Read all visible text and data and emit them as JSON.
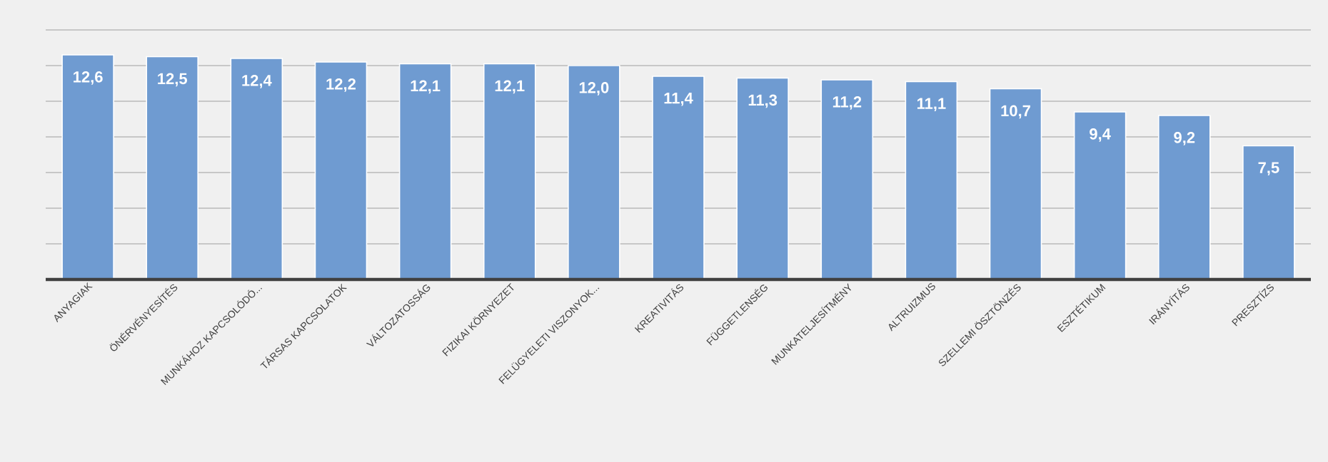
{
  "chart_data": {
    "type": "bar",
    "categories": [
      "ANYAGIAK",
      "ÖNÉRVÉNYESÍTÉS",
      "MUNKÁHOZ KAPCSOLÓDÓ...",
      "TÁRSAS KAPCSOLATOK",
      "VÁLTOZATOSSÁG",
      "FIZIKAI KÖRNYEZET",
      "FELÜGYELETI VISZONYOK...",
      "KREATIVITÁS",
      "FÜGGETLENSÉG",
      "MUNKATELJESÍTMÉNY",
      "ALTRUIZMUS",
      "SZELLEMI ÖSZTÖNZÉS",
      "ESZTÉTIKUM",
      "IRÁNYÍTÁS",
      "PRESZTÍZS"
    ],
    "values": [
      12.6,
      12.5,
      12.4,
      12.2,
      12.1,
      12.1,
      12.0,
      11.4,
      11.3,
      11.2,
      11.1,
      10.7,
      9.4,
      9.2,
      7.5
    ],
    "value_labels": [
      "12,6",
      "12,5",
      "12,4",
      "12,2",
      "12,1",
      "12,1",
      "12,0",
      "11,4",
      "11,3",
      "11,2",
      "11,1",
      "10,7",
      "9,4",
      "9,2",
      "7,5"
    ],
    "color": "#6f9bd1",
    "ylim": [
      0,
      14
    ],
    "yticks": [
      {
        "value": 0,
        "label": null
      },
      {
        "value": 2,
        "label": null
      },
      {
        "value": 4,
        "label": null
      },
      {
        "value": 6,
        "label": null
      },
      {
        "value": 8,
        "label": null
      },
      {
        "value": 10,
        "label": null
      },
      {
        "value": 12,
        "label": null
      },
      {
        "value": 14,
        "label": null
      }
    ],
    "grid": "y",
    "tick_labels": "x"
  }
}
